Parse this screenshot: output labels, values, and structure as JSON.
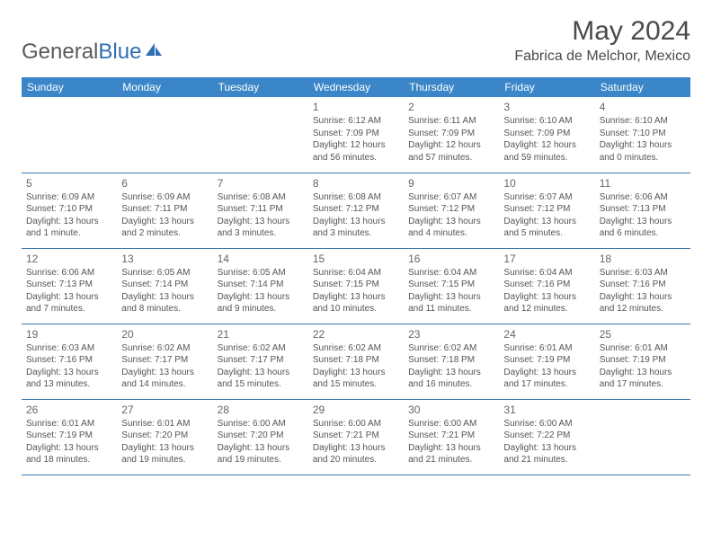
{
  "brand": {
    "part1": "General",
    "part2": "Blue"
  },
  "title": "May 2024",
  "location": "Fabrica de Melchor, Mexico",
  "colors": {
    "header_bg": "#3a86c8",
    "header_text": "#ffffff",
    "border": "#3a78b0",
    "text": "#555555",
    "brand_gray": "#5a5a5a",
    "brand_blue": "#2f6fb2"
  },
  "dayNames": [
    "Sunday",
    "Monday",
    "Tuesday",
    "Wednesday",
    "Thursday",
    "Friday",
    "Saturday"
  ],
  "weeks": [
    [
      null,
      null,
      null,
      {
        "n": "1",
        "sr": "6:12 AM",
        "ss": "7:09 PM",
        "dl": "12 hours and 56 minutes."
      },
      {
        "n": "2",
        "sr": "6:11 AM",
        "ss": "7:09 PM",
        "dl": "12 hours and 57 minutes."
      },
      {
        "n": "3",
        "sr": "6:10 AM",
        "ss": "7:09 PM",
        "dl": "12 hours and 59 minutes."
      },
      {
        "n": "4",
        "sr": "6:10 AM",
        "ss": "7:10 PM",
        "dl": "13 hours and 0 minutes."
      }
    ],
    [
      {
        "n": "5",
        "sr": "6:09 AM",
        "ss": "7:10 PM",
        "dl": "13 hours and 1 minute."
      },
      {
        "n": "6",
        "sr": "6:09 AM",
        "ss": "7:11 PM",
        "dl": "13 hours and 2 minutes."
      },
      {
        "n": "7",
        "sr": "6:08 AM",
        "ss": "7:11 PM",
        "dl": "13 hours and 3 minutes."
      },
      {
        "n": "8",
        "sr": "6:08 AM",
        "ss": "7:12 PM",
        "dl": "13 hours and 3 minutes."
      },
      {
        "n": "9",
        "sr": "6:07 AM",
        "ss": "7:12 PM",
        "dl": "13 hours and 4 minutes."
      },
      {
        "n": "10",
        "sr": "6:07 AM",
        "ss": "7:12 PM",
        "dl": "13 hours and 5 minutes."
      },
      {
        "n": "11",
        "sr": "6:06 AM",
        "ss": "7:13 PM",
        "dl": "13 hours and 6 minutes."
      }
    ],
    [
      {
        "n": "12",
        "sr": "6:06 AM",
        "ss": "7:13 PM",
        "dl": "13 hours and 7 minutes."
      },
      {
        "n": "13",
        "sr": "6:05 AM",
        "ss": "7:14 PM",
        "dl": "13 hours and 8 minutes."
      },
      {
        "n": "14",
        "sr": "6:05 AM",
        "ss": "7:14 PM",
        "dl": "13 hours and 9 minutes."
      },
      {
        "n": "15",
        "sr": "6:04 AM",
        "ss": "7:15 PM",
        "dl": "13 hours and 10 minutes."
      },
      {
        "n": "16",
        "sr": "6:04 AM",
        "ss": "7:15 PM",
        "dl": "13 hours and 11 minutes."
      },
      {
        "n": "17",
        "sr": "6:04 AM",
        "ss": "7:16 PM",
        "dl": "13 hours and 12 minutes."
      },
      {
        "n": "18",
        "sr": "6:03 AM",
        "ss": "7:16 PM",
        "dl": "13 hours and 12 minutes."
      }
    ],
    [
      {
        "n": "19",
        "sr": "6:03 AM",
        "ss": "7:16 PM",
        "dl": "13 hours and 13 minutes."
      },
      {
        "n": "20",
        "sr": "6:02 AM",
        "ss": "7:17 PM",
        "dl": "13 hours and 14 minutes."
      },
      {
        "n": "21",
        "sr": "6:02 AM",
        "ss": "7:17 PM",
        "dl": "13 hours and 15 minutes."
      },
      {
        "n": "22",
        "sr": "6:02 AM",
        "ss": "7:18 PM",
        "dl": "13 hours and 15 minutes."
      },
      {
        "n": "23",
        "sr": "6:02 AM",
        "ss": "7:18 PM",
        "dl": "13 hours and 16 minutes."
      },
      {
        "n": "24",
        "sr": "6:01 AM",
        "ss": "7:19 PM",
        "dl": "13 hours and 17 minutes."
      },
      {
        "n": "25",
        "sr": "6:01 AM",
        "ss": "7:19 PM",
        "dl": "13 hours and 17 minutes."
      }
    ],
    [
      {
        "n": "26",
        "sr": "6:01 AM",
        "ss": "7:19 PM",
        "dl": "13 hours and 18 minutes."
      },
      {
        "n": "27",
        "sr": "6:01 AM",
        "ss": "7:20 PM",
        "dl": "13 hours and 19 minutes."
      },
      {
        "n": "28",
        "sr": "6:00 AM",
        "ss": "7:20 PM",
        "dl": "13 hours and 19 minutes."
      },
      {
        "n": "29",
        "sr": "6:00 AM",
        "ss": "7:21 PM",
        "dl": "13 hours and 20 minutes."
      },
      {
        "n": "30",
        "sr": "6:00 AM",
        "ss": "7:21 PM",
        "dl": "13 hours and 21 minutes."
      },
      {
        "n": "31",
        "sr": "6:00 AM",
        "ss": "7:22 PM",
        "dl": "13 hours and 21 minutes."
      },
      null
    ]
  ],
  "labels": {
    "sunrise": "Sunrise: ",
    "sunset": "Sunset: ",
    "daylight": "Daylight: "
  }
}
